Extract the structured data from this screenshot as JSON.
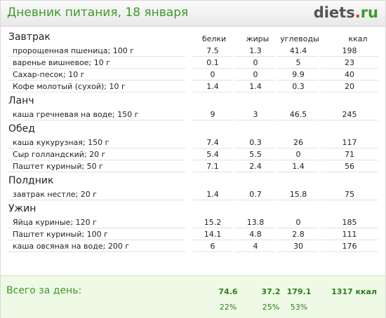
{
  "header": {
    "title": "Дневник питания, 18 января",
    "logo_main": "diets",
    "logo_dot": ".",
    "logo_tld": "ru"
  },
  "columns": [
    "белки",
    "жиры",
    "углеводы",
    "ккал"
  ],
  "meals": [
    {
      "name": "Завтрак",
      "items": [
        {
          "name": "пророщенная пшеница; 100 г",
          "protein": "7.5",
          "fat": "1.3",
          "carbs": "41.4",
          "kcal": "198"
        },
        {
          "name": "варенье вишневое; 10 г",
          "protein": "0.1",
          "fat": "0",
          "carbs": "5",
          "kcal": "23"
        },
        {
          "name": "Сахар-песок; 10 г",
          "protein": "0",
          "fat": "0",
          "carbs": "9.9",
          "kcal": "40"
        },
        {
          "name": "Кофе молотый (сухой); 10 г",
          "protein": "1.4",
          "fat": "1.4",
          "carbs": "0.3",
          "kcal": "20"
        }
      ]
    },
    {
      "name": "Ланч",
      "items": [
        {
          "name": "каша гречневая на воде; 150 г",
          "protein": "9",
          "fat": "3",
          "carbs": "46.5",
          "kcal": "245"
        }
      ]
    },
    {
      "name": "Обед",
      "items": [
        {
          "name": "каша кукурузная; 150 г",
          "protein": "7.4",
          "fat": "0.3",
          "carbs": "26",
          "kcal": "117"
        },
        {
          "name": "Сыр голландский; 20 г",
          "protein": "5.4",
          "fat": "5.5",
          "carbs": "0",
          "kcal": "71"
        },
        {
          "name": "Паштет куриный; 50 г",
          "protein": "7.1",
          "fat": "2.4",
          "carbs": "1.4",
          "kcal": "56"
        }
      ]
    },
    {
      "name": "Полдник",
      "items": [
        {
          "name": "завтрак нестле; 20 г",
          "protein": "1.4",
          "fat": "0.7",
          "carbs": "15.8",
          "kcal": "75"
        }
      ]
    },
    {
      "name": "Ужин",
      "items": [
        {
          "name": "Яйца куриные; 120 г",
          "protein": "15.2",
          "fat": "13.8",
          "carbs": "0",
          "kcal": "185"
        },
        {
          "name": "Паштет куриный; 100 г",
          "protein": "14.1",
          "fat": "4.8",
          "carbs": "2.8",
          "kcal": "111"
        },
        {
          "name": "каша овсяная на воде; 200 г",
          "protein": "6",
          "fat": "4",
          "carbs": "30",
          "kcal": "176"
        }
      ]
    }
  ],
  "totals": {
    "label": "Всего за день:",
    "protein": "74.6",
    "fat": "37.2",
    "carbs": "179.1",
    "kcal": "1317 ккал",
    "protein_pct": "22%",
    "fat_pct": "25%",
    "carbs_pct": "53%"
  }
}
